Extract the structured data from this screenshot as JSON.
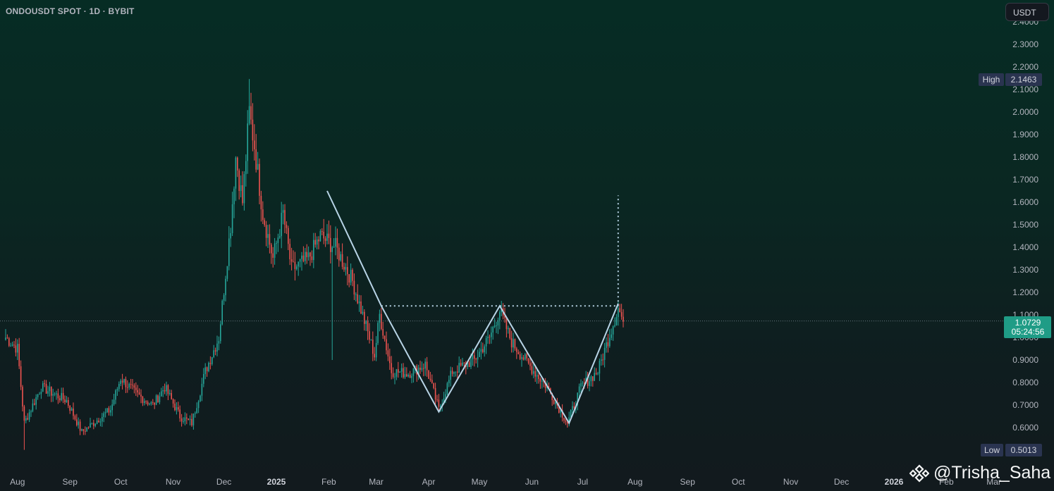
{
  "header": {
    "symbol_title": "ONDOUSDT SPOT · 1D · BYBIT",
    "currency_button": "USDT"
  },
  "price_axis": {
    "labels": [
      "2.4000",
      "2.3000",
      "2.2000",
      "2.1000",
      "2.0000",
      "1.9000",
      "1.8000",
      "1.7000",
      "1.6000",
      "1.5000",
      "1.4000",
      "1.3000",
      "1.2000",
      "1.1000",
      "1.0000",
      "0.9000",
      "0.8000",
      "0.7000",
      "0.6000"
    ],
    "high_label": "High",
    "high_value": "2.1463",
    "low_label": "Low",
    "low_value": "0.5013",
    "current_price": "1.0729",
    "countdown": "05:24:56"
  },
  "time_axis": {
    "labels": [
      "Aug",
      "Sep",
      "Oct",
      "Nov",
      "Dec",
      "2025",
      "Feb",
      "Mar",
      "Apr",
      "May",
      "Jun",
      "Jul",
      "Aug",
      "Sep",
      "Oct",
      "Nov",
      "Dec",
      "2026",
      "Feb",
      "Mar"
    ]
  },
  "watermark": {
    "text": "@Trisha_Saha",
    "icon": "binance-logo-icon"
  },
  "colors": {
    "up": "#26a69a",
    "down": "#ef5350",
    "pattern": "#b8d4e6",
    "label_bg": "#2a3450",
    "price_tag": "#1f9c86"
  },
  "chart_data": {
    "type": "candlestick",
    "title": "ONDOUSDT SPOT · 1D · BYBIT",
    "xlabel": "",
    "ylabel": "",
    "ylim": [
      0.45,
      2.45
    ],
    "grid": false,
    "x_range": [
      "2024-07-25",
      "2026-03-05"
    ],
    "high": 2.1463,
    "low": 0.5013,
    "last_price": 1.0729,
    "anchors": [
      {
        "date": "2024-07-25",
        "close": 1.0
      },
      {
        "date": "2024-08-01",
        "close": 0.95
      },
      {
        "date": "2024-08-05",
        "close": 0.62
      },
      {
        "date": "2024-08-15",
        "close": 0.78
      },
      {
        "date": "2024-08-30",
        "close": 0.72
      },
      {
        "date": "2024-09-08",
        "close": 0.58
      },
      {
        "date": "2024-09-25",
        "close": 0.68
      },
      {
        "date": "2024-10-01",
        "close": 0.82
      },
      {
        "date": "2024-10-10",
        "close": 0.75
      },
      {
        "date": "2024-10-20",
        "close": 0.7
      },
      {
        "date": "2024-10-27",
        "close": 0.78
      },
      {
        "date": "2024-11-05",
        "close": 0.65
      },
      {
        "date": "2024-11-12",
        "close": 0.62
      },
      {
        "date": "2024-11-20",
        "close": 0.85
      },
      {
        "date": "2024-11-28",
        "close": 1.0
      },
      {
        "date": "2024-12-05",
        "close": 1.5
      },
      {
        "date": "2024-12-08",
        "close": 1.8
      },
      {
        "date": "2024-12-12",
        "close": 1.6
      },
      {
        "date": "2024-12-16",
        "close": 2.0
      },
      {
        "date": "2024-12-19",
        "close": 1.85
      },
      {
        "date": "2024-12-24",
        "close": 1.55
      },
      {
        "date": "2024-12-30",
        "close": 1.35
      },
      {
        "date": "2025-01-05",
        "close": 1.55
      },
      {
        "date": "2025-01-10",
        "close": 1.3
      },
      {
        "date": "2025-01-20",
        "close": 1.35
      },
      {
        "date": "2025-01-27",
        "close": 1.45
      },
      {
        "date": "2025-02-05",
        "close": 1.4
      },
      {
        "date": "2025-02-15",
        "close": 1.25
      },
      {
        "date": "2025-02-28",
        "close": 0.92
      },
      {
        "date": "2025-03-03",
        "close": 1.1
      },
      {
        "date": "2025-03-10",
        "close": 0.85
      },
      {
        "date": "2025-03-20",
        "close": 0.84
      },
      {
        "date": "2025-03-30",
        "close": 0.88
      },
      {
        "date": "2025-04-07",
        "close": 0.68
      },
      {
        "date": "2025-04-15",
        "close": 0.85
      },
      {
        "date": "2025-04-28",
        "close": 0.9
      },
      {
        "date": "2025-05-07",
        "close": 1.0
      },
      {
        "date": "2025-05-13",
        "close": 1.12
      },
      {
        "date": "2025-05-20",
        "close": 0.98
      },
      {
        "date": "2025-05-30",
        "close": 0.88
      },
      {
        "date": "2025-06-10",
        "close": 0.78
      },
      {
        "date": "2025-06-22",
        "close": 0.62
      },
      {
        "date": "2025-06-30",
        "close": 0.78
      },
      {
        "date": "2025-07-10",
        "close": 0.85
      },
      {
        "date": "2025-07-22",
        "close": 1.13
      },
      {
        "date": "2025-07-25",
        "close": 1.07
      }
    ],
    "pattern_line": [
      {
        "date": "2025-01-31",
        "price": 1.65
      },
      {
        "date": "2025-03-04",
        "price": 1.14
      },
      {
        "date": "2025-04-07",
        "price": 0.67
      },
      {
        "date": "2025-05-13",
        "price": 1.14
      },
      {
        "date": "2025-06-23",
        "price": 0.62
      },
      {
        "date": "2025-07-22",
        "price": 1.15
      }
    ],
    "neckline": {
      "start": "2025-03-04",
      "end": "2025-07-22",
      "price": 1.14
    },
    "target_line": {
      "date": "2025-07-22",
      "from": 1.14,
      "to": 1.63
    },
    "last_price_line": 1.0729
  }
}
